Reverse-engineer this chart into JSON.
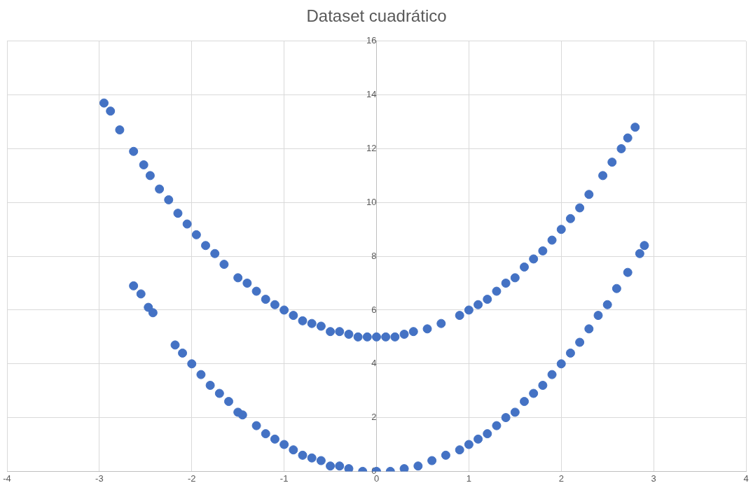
{
  "chart_data": {
    "type": "scatter",
    "title": "Dataset cuadrático",
    "color": "#4472c4",
    "marker": "circle",
    "grid": true,
    "legend": false,
    "x": [
      -2.95,
      -2.88,
      -2.78,
      -2.63,
      -2.52,
      -2.45,
      -2.35,
      -2.25,
      -2.15,
      -2.05,
      -1.95,
      -1.85,
      -1.75,
      -1.65,
      -1.5,
      -1.4,
      -1.3,
      -1.2,
      -1.1,
      -1.0,
      -0.9,
      -0.8,
      -0.7,
      -0.6,
      -0.5,
      -0.4,
      -0.3,
      -0.2,
      -0.1,
      0,
      0.1,
      0.2,
      0.3,
      0.4,
      0.55,
      0.7,
      0.9,
      1.0,
      1.1,
      1.2,
      1.3,
      1.4,
      1.5,
      1.6,
      1.7,
      1.8,
      1.9,
      2.0,
      2.1,
      2.2,
      2.3,
      2.45,
      2.55,
      2.65,
      2.72,
      2.8,
      -2.63,
      -2.55,
      -2.47,
      -2.42,
      -2.18,
      -2.1,
      -2.0,
      -1.9,
      -1.8,
      -1.7,
      -1.6,
      -1.5,
      -1.45,
      -1.3,
      -1.2,
      -1.1,
      -1.0,
      -0.9,
      -0.8,
      -0.7,
      -0.6,
      -0.5,
      -0.4,
      -0.3,
      -0.15,
      0,
      0.15,
      0.3,
      0.45,
      0.6,
      0.75,
      0.9,
      1.0,
      1.1,
      1.2,
      1.3,
      1.4,
      1.5,
      1.6,
      1.7,
      1.8,
      1.9,
      2.0,
      2.1,
      2.2,
      2.3,
      2.4,
      2.5,
      2.6,
      2.72,
      2.85,
      2.9
    ],
    "values": [
      13.7,
      13.4,
      12.7,
      11.9,
      11.4,
      11.0,
      10.5,
      10.1,
      9.6,
      9.2,
      8.8,
      8.4,
      8.1,
      7.7,
      7.2,
      7.0,
      6.7,
      6.4,
      6.2,
      6.0,
      5.8,
      5.6,
      5.5,
      5.4,
      5.2,
      5.2,
      5.1,
      5.0,
      5.0,
      5.0,
      5.0,
      5.0,
      5.1,
      5.2,
      5.3,
      5.5,
      5.8,
      6.0,
      6.2,
      6.4,
      6.7,
      7.0,
      7.2,
      7.6,
      7.9,
      8.2,
      8.6,
      9.0,
      9.4,
      9.8,
      10.3,
      11.0,
      11.5,
      12.0,
      12.4,
      12.8,
      6.9,
      6.6,
      6.1,
      5.9,
      4.7,
      4.4,
      4.0,
      3.6,
      3.2,
      2.9,
      2.6,
      2.2,
      2.1,
      1.7,
      1.4,
      1.2,
      1.0,
      0.8,
      0.6,
      0.5,
      0.4,
      0.2,
      0.2,
      0.1,
      0.0,
      0.0,
      0.0,
      0.1,
      0.2,
      0.4,
      0.6,
      0.8,
      1.0,
      1.2,
      1.4,
      1.7,
      2.0,
      2.2,
      2.6,
      2.9,
      3.2,
      3.6,
      4.0,
      4.4,
      4.8,
      5.3,
      5.8,
      6.2,
      6.8,
      7.4,
      8.1,
      8.4
    ],
    "xlim": [
      -4,
      4
    ],
    "xticks": [
      -4,
      -3,
      -2,
      -1,
      0,
      1,
      2,
      3,
      4
    ],
    "ylim": [
      0,
      16
    ],
    "yticks": [
      0,
      2,
      4,
      6,
      8,
      10,
      12,
      14,
      16
    ]
  }
}
